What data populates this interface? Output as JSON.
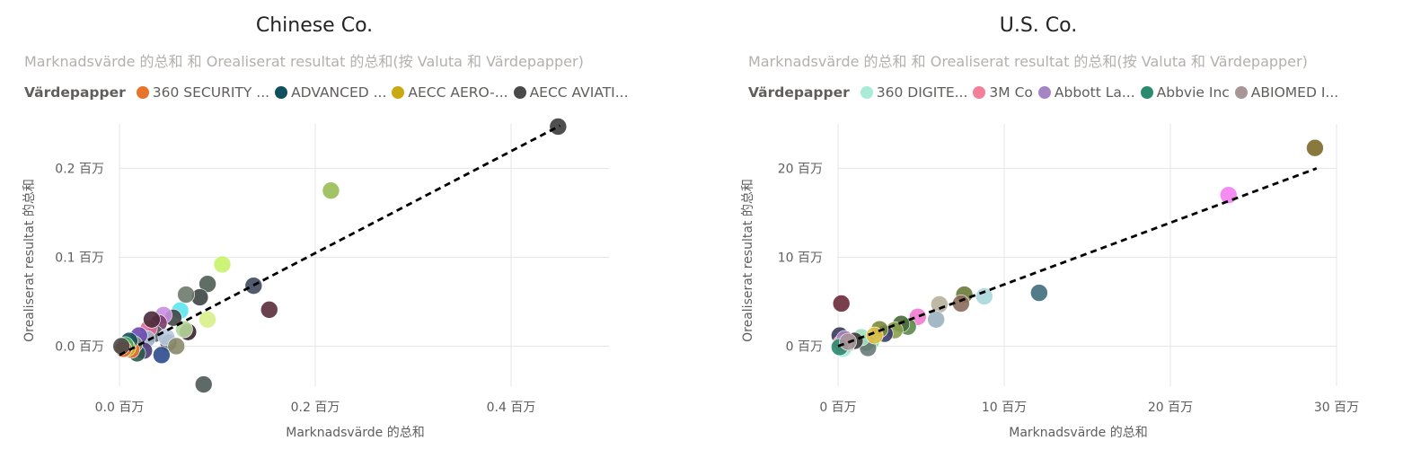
{
  "chart_data": [
    {
      "type": "scatter",
      "title": "Chinese Co.",
      "subtitle": "Marknadsvärde 的总和 和 Orealiserat resultat 的总和(按 Valuta 和 Värdepapper)",
      "xlabel": "Marknadsvärde 的总和",
      "ylabel": "Orealiserat resultat 的总和",
      "x_ticks": [
        {
          "value": 0.0,
          "label": "0.0 百万"
        },
        {
          "value": 0.2,
          "label": "0.2 百万"
        },
        {
          "value": 0.4,
          "label": "0.4 百万"
        }
      ],
      "y_ticks": [
        {
          "value": 0.0,
          "label": "0.0 百万"
        },
        {
          "value": 0.1,
          "label": "0.1 百万"
        },
        {
          "value": 0.2,
          "label": "0.2 百万"
        }
      ],
      "xlim": [
        0,
        0.5
      ],
      "ylim": [
        -0.045,
        0.25
      ],
      "grid": true,
      "legend": {
        "title": "Värdepapper",
        "position": "top-left",
        "items": [
          {
            "label": "360 SECURITY ...",
            "color": "#e8732a"
          },
          {
            "label": "ADVANCED ...",
            "color": "#124f5c"
          },
          {
            "label": "AECC AERO-...",
            "color": "#c8a912"
          },
          {
            "label": "AECC AVIATI...",
            "color": "#4a4a4a"
          }
        ]
      },
      "trendline": {
        "x1": 0.0,
        "y1": -0.01,
        "x2": 0.45,
        "y2": 0.248
      },
      "points": [
        {
          "x": 0.448,
          "y": 0.247,
          "color": "#3c3c3c"
        },
        {
          "x": 0.216,
          "y": 0.175,
          "color": "#98bd55"
        },
        {
          "x": 0.105,
          "y": 0.092,
          "color": "#c9f26a"
        },
        {
          "x": 0.137,
          "y": 0.068,
          "color": "#3f4a5e"
        },
        {
          "x": 0.153,
          "y": 0.041,
          "color": "#5a2e3a"
        },
        {
          "x": 0.09,
          "y": 0.03,
          "color": "#d8f08a"
        },
        {
          "x": 0.086,
          "y": -0.043,
          "color": "#4d5a58"
        },
        {
          "x": 0.09,
          "y": 0.07,
          "color": "#4f5e55"
        },
        {
          "x": 0.082,
          "y": 0.055,
          "color": "#3e4544"
        },
        {
          "x": 0.068,
          "y": 0.058,
          "color": "#6b7a6b"
        },
        {
          "x": 0.062,
          "y": 0.04,
          "color": "#5ce6f0"
        },
        {
          "x": 0.07,
          "y": 0.016,
          "color": "#3a1f2e"
        },
        {
          "x": 0.066,
          "y": 0.019,
          "color": "#b6d69a"
        },
        {
          "x": 0.055,
          "y": 0.032,
          "color": "#424646"
        },
        {
          "x": 0.05,
          "y": 0.004,
          "color": "#5a5a5a"
        },
        {
          "x": 0.043,
          "y": -0.01,
          "color": "#2e4a8c"
        },
        {
          "x": 0.045,
          "y": 0.035,
          "color": "#c98fe0"
        },
        {
          "x": 0.04,
          "y": 0.026,
          "color": "#7a3a6a"
        },
        {
          "x": 0.036,
          "y": 0.014,
          "color": "#56606a"
        },
        {
          "x": 0.03,
          "y": 0.02,
          "color": "#e06a9a"
        },
        {
          "x": 0.028,
          "y": 0.008,
          "color": "#9bb0c8"
        },
        {
          "x": 0.025,
          "y": -0.005,
          "color": "#4a3a7a"
        },
        {
          "x": 0.02,
          "y": 0.012,
          "color": "#6a4ab0"
        },
        {
          "x": 0.018,
          "y": -0.008,
          "color": "#2e5a4a"
        },
        {
          "x": 0.015,
          "y": 0.002,
          "color": "#7a8a7a"
        },
        {
          "x": 0.012,
          "y": -0.004,
          "color": "#e8732a"
        },
        {
          "x": 0.01,
          "y": 0.006,
          "color": "#124f5c"
        },
        {
          "x": 0.008,
          "y": -0.002,
          "color": "#c8a912"
        },
        {
          "x": 0.006,
          "y": 0.001,
          "color": "#3fae5a"
        },
        {
          "x": 0.004,
          "y": -0.003,
          "color": "#e06a2a"
        },
        {
          "x": 0.002,
          "y": 0.0,
          "color": "#4a4a4a"
        },
        {
          "x": 0.048,
          "y": 0.01,
          "color": "#b7c9e0"
        },
        {
          "x": 0.058,
          "y": 0.0,
          "color": "#8a8a6a"
        },
        {
          "x": 0.033,
          "y": 0.03,
          "color": "#4a2a3a"
        }
      ]
    },
    {
      "type": "scatter",
      "title": "U.S. Co.",
      "subtitle": "Marknadsvärde 的总和 和 Orealiserat resultat 的总和(按 Valuta 和 Värdepapper)",
      "xlabel": "Marknadsvärde 的总和",
      "ylabel": "Orealiserat resultat 的总和",
      "x_ticks": [
        {
          "value": 0,
          "label": "0 百万"
        },
        {
          "value": 10,
          "label": "10 百万"
        },
        {
          "value": 20,
          "label": "20 百万"
        },
        {
          "value": 30,
          "label": "30 百万"
        }
      ],
      "y_ticks": [
        {
          "value": 0,
          "label": "0 百万"
        },
        {
          "value": 10,
          "label": "10 百万"
        },
        {
          "value": 20,
          "label": "20 百万"
        }
      ],
      "xlim": [
        0,
        30
      ],
      "ylim": [
        -4.5,
        25
      ],
      "grid": true,
      "legend": {
        "title": "Värdepapper",
        "position": "top-left",
        "items": [
          {
            "label": "360 DIGITE...",
            "color": "#a8ecd8"
          },
          {
            "label": "3M Co",
            "color": "#f47f9a"
          },
          {
            "label": "Abbott La...",
            "color": "#a685c4"
          },
          {
            "label": "Abbvie Inc",
            "color": "#2a8a70"
          },
          {
            "label": "ABIOMED I...",
            "color": "#a89598"
          }
        ]
      },
      "trendline": {
        "x1": 0.0,
        "y1": 0.0,
        "x2": 28.8,
        "y2": 20.0
      },
      "points": [
        {
          "x": 28.7,
          "y": 22.3,
          "color": "#7d6a2a"
        },
        {
          "x": 23.5,
          "y": 17.0,
          "color": "#f47ff0"
        },
        {
          "x": 12.1,
          "y": 6.0,
          "color": "#3f6e7a"
        },
        {
          "x": 8.8,
          "y": 5.6,
          "color": "#a8d8dc"
        },
        {
          "x": 7.6,
          "y": 5.8,
          "color": "#6a7a3a"
        },
        {
          "x": 7.4,
          "y": 4.8,
          "color": "#8a6a5a"
        },
        {
          "x": 6.1,
          "y": 4.7,
          "color": "#b8b09a"
        },
        {
          "x": 5.9,
          "y": 3.0,
          "color": "#9ab0c0"
        },
        {
          "x": 4.8,
          "y": 3.3,
          "color": "#f07ad0"
        },
        {
          "x": 4.2,
          "y": 2.2,
          "color": "#5a8a4a"
        },
        {
          "x": 3.8,
          "y": 2.5,
          "color": "#4a6a3a"
        },
        {
          "x": 3.4,
          "y": 1.8,
          "color": "#8aa04a"
        },
        {
          "x": 2.8,
          "y": 1.4,
          "color": "#3a3a6a"
        },
        {
          "x": 2.5,
          "y": 1.9,
          "color": "#7a8a3a"
        },
        {
          "x": 2.0,
          "y": 0.6,
          "color": "#5af07a"
        },
        {
          "x": 1.7,
          "y": 0.4,
          "color": "#4a8a5a"
        },
        {
          "x": 1.8,
          "y": -0.2,
          "color": "#6a7a7a"
        },
        {
          "x": 1.4,
          "y": 1.0,
          "color": "#a0e0c0"
        },
        {
          "x": 1.0,
          "y": 0.6,
          "color": "#3a3a3a"
        },
        {
          "x": 0.5,
          "y": 0.2,
          "color": "#5a6a5a"
        },
        {
          "x": 0.2,
          "y": 4.8,
          "color": "#6a2a3a"
        },
        {
          "x": 0.1,
          "y": 1.2,
          "color": "#3a3a5a"
        },
        {
          "x": 0.3,
          "y": -0.3,
          "color": "#a8ecd8"
        },
        {
          "x": 0.2,
          "y": 0.3,
          "color": "#f47f9a"
        },
        {
          "x": 0.4,
          "y": 0.8,
          "color": "#a685c4"
        },
        {
          "x": 0.1,
          "y": -0.1,
          "color": "#2a8a70"
        },
        {
          "x": 0.6,
          "y": 0.5,
          "color": "#a89598"
        },
        {
          "x": 2.2,
          "y": 1.2,
          "color": "#e0c04a"
        }
      ]
    }
  ]
}
